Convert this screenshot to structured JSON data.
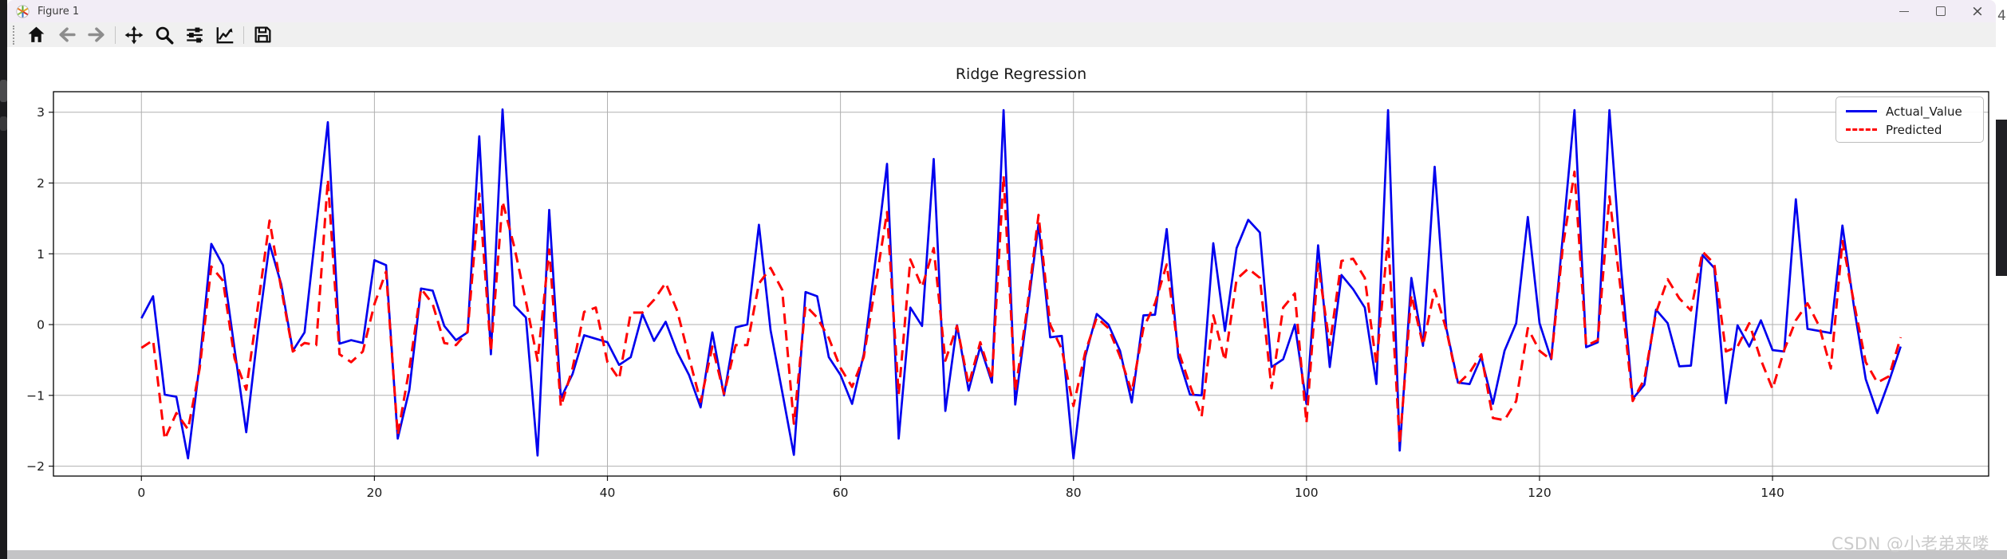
{
  "window": {
    "title": "Figure 1",
    "controls": {
      "minimize": "minimize",
      "maximize": "maximize",
      "close": "close"
    }
  },
  "toolbar": {
    "buttons": [
      {
        "name": "home"
      },
      {
        "name": "back"
      },
      {
        "name": "forward"
      },
      {
        "name": "pan"
      },
      {
        "name": "zoom"
      },
      {
        "name": "configure-subplots"
      },
      {
        "name": "edit-parameters"
      },
      {
        "name": "save"
      }
    ]
  },
  "chart_data": {
    "type": "line",
    "title": "Ridge Regression",
    "xlabel": "",
    "ylabel": "",
    "x_first": 0,
    "x_step": 1,
    "xlim": [
      -7.55,
      158.55
    ],
    "ylim": [
      -2.14,
      3.29
    ],
    "grid": true,
    "legend_position": "upper right",
    "grid_color": "#b0b0b0",
    "xtick_values": [
      0,
      20,
      40,
      60,
      80,
      100,
      120,
      140
    ],
    "xtick_labels": [
      "0",
      "20",
      "40",
      "60",
      "80",
      "100",
      "120",
      "140"
    ],
    "ytick_values": [
      -2,
      -1,
      0,
      1,
      2,
      3
    ],
    "ytick_labels": [
      "−2",
      "−1",
      "0",
      "1",
      "2",
      "3"
    ],
    "series": [
      {
        "name": "Actual_Value",
        "color": "#0000ee",
        "style": "solid",
        "values": [
          0.09,
          0.4,
          -0.99,
          -1.02,
          -1.89,
          -0.55,
          1.14,
          0.84,
          -0.35,
          -1.52,
          -0.11,
          1.14,
          0.57,
          -0.37,
          -0.11,
          1.38,
          2.86,
          -0.27,
          -0.22,
          -0.26,
          0.91,
          0.84,
          -1.61,
          -0.92,
          0.51,
          0.48,
          -0.02,
          -0.22,
          -0.11,
          2.66,
          -0.42,
          3.04,
          0.27,
          0.1,
          -1.85,
          1.62,
          -1.04,
          -0.7,
          -0.15,
          -0.2,
          -0.25,
          -0.57,
          -0.46,
          0.15,
          -0.23,
          0.04,
          -0.39,
          -0.71,
          -1.17,
          -0.11,
          -1.0,
          -0.04,
          0.0,
          1.41,
          -0.08,
          -0.95,
          -1.84,
          0.46,
          0.4,
          -0.46,
          -0.71,
          -1.12,
          -0.42,
          0.9,
          2.27,
          -1.61,
          0.24,
          -0.02,
          2.34,
          -1.22,
          -0.01,
          -0.93,
          -0.31,
          -0.82,
          3.03,
          -1.13,
          0.13,
          1.42,
          -0.18,
          -0.16,
          -1.89,
          -0.46,
          0.15,
          0.0,
          -0.37,
          -1.1,
          0.13,
          0.14,
          1.35,
          -0.46,
          -0.99,
          -1.0,
          1.15,
          -0.09,
          1.08,
          1.48,
          1.3,
          -0.6,
          -0.49,
          0.0,
          -1.12,
          1.12,
          -0.6,
          0.7,
          0.5,
          0.24,
          -0.84,
          3.03,
          -1.78,
          0.66,
          -0.3,
          2.23,
          -0.05,
          -0.82,
          -0.84,
          -0.46,
          -1.12,
          -0.37,
          0.02,
          1.52,
          0.02,
          -0.49,
          1.25,
          3.03,
          -0.32,
          -0.25,
          3.03,
          0.8,
          -1.05,
          -0.85,
          0.21,
          0.02,
          -0.59,
          -0.58,
          0.98,
          0.8,
          -1.11,
          -0.01,
          -0.31,
          0.06,
          -0.36,
          -0.38,
          1.77,
          -0.06,
          -0.09,
          -0.12,
          1.4,
          0.24,
          -0.77,
          -1.25,
          -0.8,
          -0.31
        ]
      },
      {
        "name": "Predicted",
        "color": "#ff0000",
        "style": "dashed",
        "values": [
          -0.33,
          -0.22,
          -1.62,
          -1.25,
          -1.48,
          -0.62,
          0.82,
          0.62,
          -0.48,
          -0.92,
          0.26,
          1.47,
          0.51,
          -0.38,
          -0.26,
          -0.29,
          2.05,
          -0.42,
          -0.53,
          -0.38,
          0.29,
          0.75,
          -1.56,
          -0.62,
          0.51,
          0.29,
          -0.26,
          -0.29,
          -0.1,
          1.85,
          -0.38,
          1.74,
          1.1,
          0.33,
          -0.51,
          1.06,
          -1.16,
          -0.62,
          0.18,
          0.24,
          -0.53,
          -0.77,
          0.17,
          0.17,
          0.35,
          0.59,
          0.19,
          -0.46,
          -1.09,
          -0.31,
          -0.98,
          -0.29,
          -0.29,
          0.58,
          0.8,
          0.49,
          -1.4,
          0.27,
          0.1,
          -0.19,
          -0.61,
          -0.88,
          -0.46,
          0.55,
          1.59,
          -0.99,
          0.92,
          0.53,
          1.08,
          -0.51,
          -0.02,
          -0.85,
          -0.25,
          -0.78,
          2.1,
          -0.95,
          0.2,
          1.55,
          0.0,
          -0.35,
          -1.15,
          -0.4,
          0.1,
          -0.05,
          -0.45,
          -0.95,
          -0.05,
          0.3,
          0.85,
          -0.37,
          -0.86,
          -1.3,
          0.13,
          -0.51,
          0.64,
          0.79,
          0.66,
          -0.9,
          0.24,
          0.44,
          -1.39,
          0.86,
          -0.29,
          0.9,
          0.93,
          0.66,
          -0.57,
          1.23,
          -1.69,
          0.42,
          -0.29,
          0.49,
          -0.07,
          -0.84,
          -0.68,
          -0.42,
          -1.32,
          -1.35,
          -1.08,
          -0.05,
          -0.37,
          -0.5,
          1.1,
          2.16,
          -0.3,
          -0.22,
          1.81,
          0.45,
          -1.08,
          -0.77,
          0.17,
          0.64,
          0.37,
          0.2,
          1.03,
          0.86,
          -0.38,
          -0.31,
          0.02,
          -0.5,
          -0.91,
          -0.36,
          0.06,
          0.3,
          -0.02,
          -0.62,
          1.18,
          0.3,
          -0.53,
          -0.82,
          -0.73,
          -0.18
        ]
      }
    ]
  },
  "watermark": "CSDN @小老弟来喽",
  "background_fragment": "4"
}
